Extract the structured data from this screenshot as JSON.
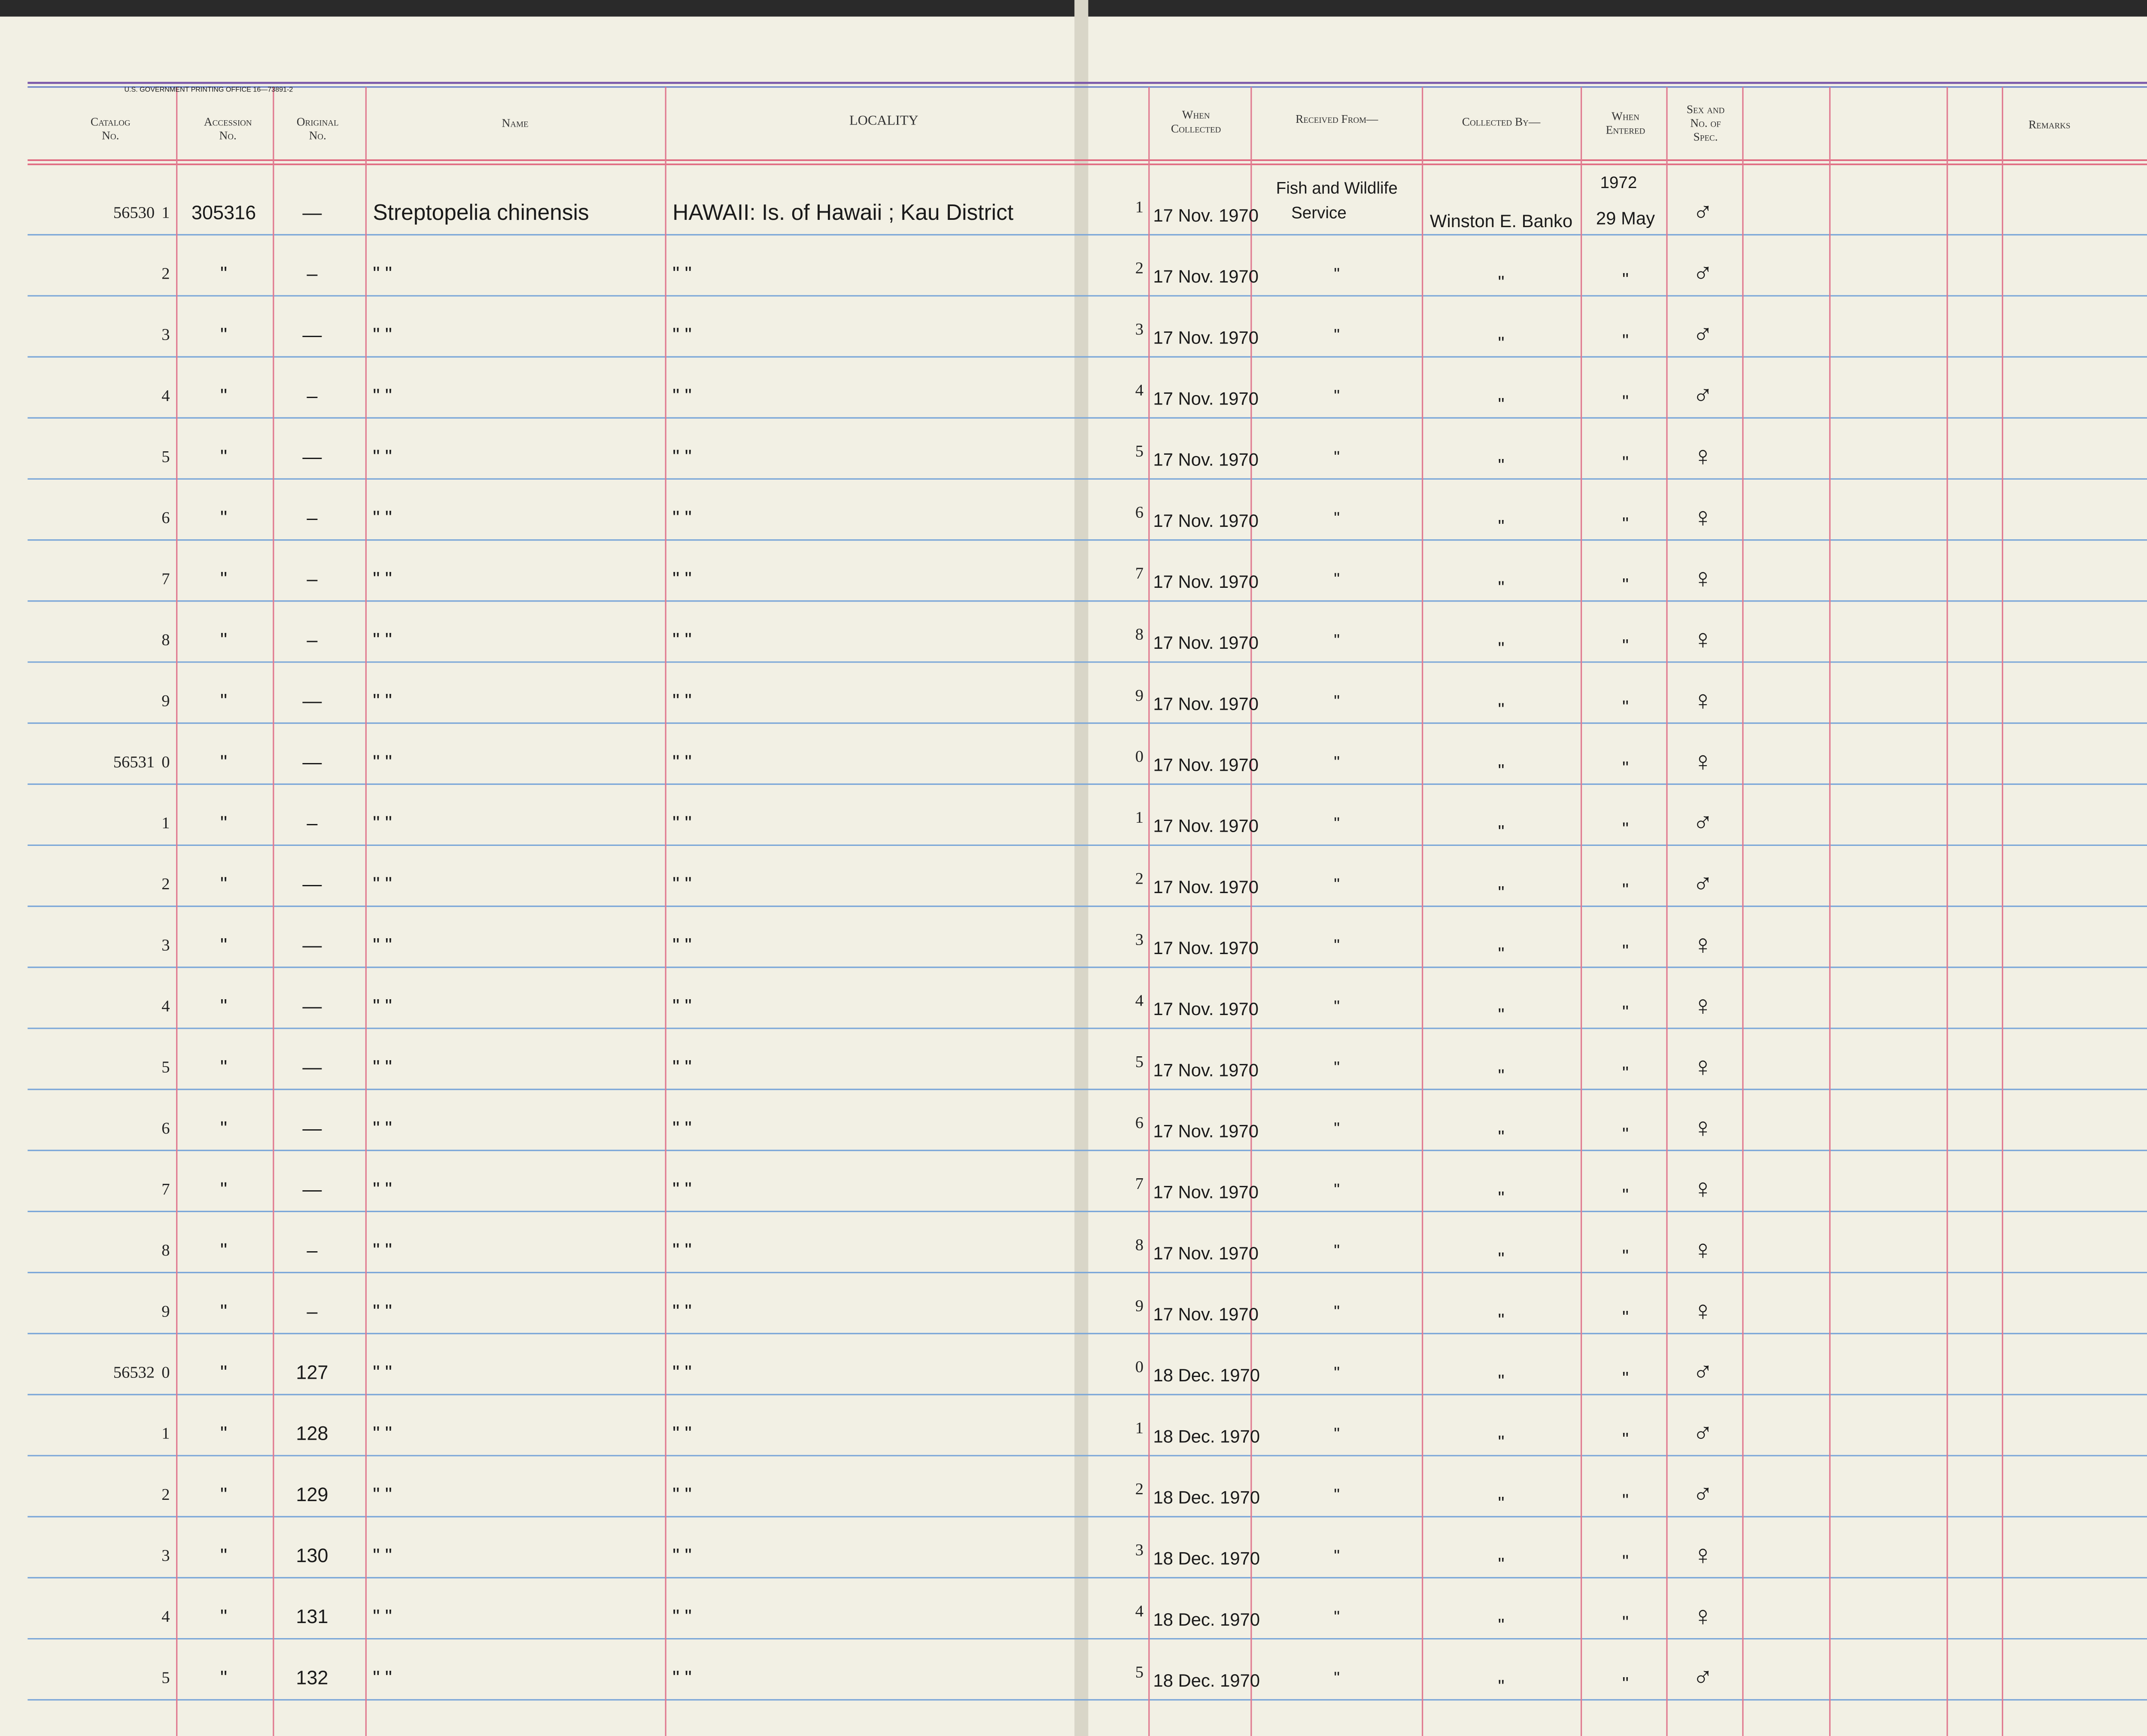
{
  "imprint": "U.S. GOVERNMENT PRINTING OFFICE    16—73891-2",
  "headers": {
    "catalog": "Catalog No.",
    "accession": "Accession No.",
    "original": "Original No.",
    "name": "Name",
    "locality": "LOCALITY",
    "when_collected": "When Collected",
    "received_from": "Received From—",
    "collected_by": "Collected By—",
    "when_entered": "When Entered",
    "sex": "Sex and No. of Spec.",
    "remarks": "Remarks"
  },
  "rows": [
    {
      "catalog": "56530",
      "n": "1",
      "accession": "305316",
      "original": "—",
      "name": "Streptopelia chinensis",
      "locality": "HAWAII: Is. of Hawaii ; Kau District",
      "d": "1",
      "date": "17 Nov. 1970",
      "received": "Fish and Wildlife",
      "received2": "Service",
      "collected": "Winston E. Banko",
      "year": "1972",
      "entered": "29 May",
      "sex": "♂"
    },
    {
      "n": "2",
      "accession": "\"",
      "original": "–",
      "name": "\"          \"",
      "locality": "\"          \"",
      "d": "2",
      "date": "17 Nov. 1970",
      "received": "\"",
      "collected": "\"",
      "entered": "\"",
      "sex": "♂"
    },
    {
      "n": "3",
      "accession": "\"",
      "original": "—",
      "name": "\"          \"",
      "locality": "\"          \"",
      "d": "3",
      "date": "17 Nov. 1970",
      "received": "\"",
      "collected": "\"",
      "entered": "\"",
      "sex": "♂"
    },
    {
      "n": "4",
      "accession": "\"",
      "original": "–",
      "name": "\"          \"",
      "locality": "\"          \"",
      "d": "4",
      "date": "17 Nov. 1970",
      "received": "\"",
      "collected": "\"",
      "entered": "\"",
      "sex": "♂"
    },
    {
      "n": "5",
      "accession": "\"",
      "original": "—",
      "name": "\"          \"",
      "locality": "\"          \"",
      "d": "5",
      "date": "17 Nov. 1970",
      "received": "\"",
      "collected": "\"",
      "entered": "\"",
      "sex": "♀"
    },
    {
      "n": "6",
      "accession": "\"",
      "original": "–",
      "name": "\"          \"",
      "locality": "\"          \"",
      "d": "6",
      "date": "17 Nov. 1970",
      "received": "\"",
      "collected": "\"",
      "entered": "\"",
      "sex": "♀"
    },
    {
      "n": "7",
      "accession": "\"",
      "original": "–",
      "name": "\"          \"",
      "locality": "\"          \"",
      "d": "7",
      "date": "17 Nov. 1970",
      "received": "\"",
      "collected": "\"",
      "entered": "\"",
      "sex": "♀"
    },
    {
      "n": "8",
      "accession": "\"",
      "original": "–",
      "name": "\"          \"",
      "locality": "\"          \"",
      "d": "8",
      "date": "17 Nov. 1970",
      "received": "\"",
      "collected": "\"",
      "entered": "\"",
      "sex": "♀"
    },
    {
      "n": "9",
      "accession": "\"",
      "original": "—",
      "name": "\"          \"",
      "locality": "\"          \"",
      "d": "9",
      "date": "17 Nov. 1970",
      "received": "\"",
      "collected": "\"",
      "entered": "\"",
      "sex": "♀"
    },
    {
      "catalog": "56531",
      "n": "0",
      "accession": "\"",
      "original": "—",
      "name": "\"          \"",
      "locality": "\"          \"",
      "d": "0",
      "date": "17 Nov. 1970",
      "received": "\"",
      "collected": "\"",
      "entered": "\"",
      "sex": "♀"
    },
    {
      "n": "1",
      "accession": "\"",
      "original": "–",
      "name": "\"          \"",
      "locality": "\"          \"",
      "d": "1",
      "date": "17 Nov. 1970",
      "received": "\"",
      "collected": "\"",
      "entered": "\"",
      "sex": "♂"
    },
    {
      "n": "2",
      "accession": "\"",
      "original": "—",
      "name": "\"          \"",
      "locality": "\"          \"",
      "d": "2",
      "date": "17 Nov. 1970",
      "received": "\"",
      "collected": "\"",
      "entered": "\"",
      "sex": "♂"
    },
    {
      "n": "3",
      "accession": "\"",
      "original": "—",
      "name": "\"          \"",
      "locality": "\"          \"",
      "d": "3",
      "date": "17 Nov. 1970",
      "received": "\"",
      "collected": "\"",
      "entered": "\"",
      "sex": "♀"
    },
    {
      "n": "4",
      "accession": "\"",
      "original": "—",
      "name": "\"          \"",
      "locality": "\"          \"",
      "d": "4",
      "date": "17 Nov. 1970",
      "received": "\"",
      "collected": "\"",
      "entered": "\"",
      "sex": "♀"
    },
    {
      "n": "5",
      "accession": "\"",
      "original": "—",
      "name": "\"          \"",
      "locality": "\"          \"",
      "d": "5",
      "date": "17 Nov. 1970",
      "received": "\"",
      "collected": "\"",
      "entered": "\"",
      "sex": "♀"
    },
    {
      "n": "6",
      "accession": "\"",
      "original": "—",
      "name": "\"          \"",
      "locality": "\"          \"",
      "d": "6",
      "date": "17 Nov. 1970",
      "received": "\"",
      "collected": "\"",
      "entered": "\"",
      "sex": "♀"
    },
    {
      "n": "7",
      "accession": "\"",
      "original": "—",
      "name": "\"          \"",
      "locality": "\"          \"",
      "d": "7",
      "date": "17 Nov. 1970",
      "received": "\"",
      "collected": "\"",
      "entered": "\"",
      "sex": "♀"
    },
    {
      "n": "8",
      "accession": "\"",
      "original": "–",
      "name": "\"          \"",
      "locality": "\"          \"",
      "d": "8",
      "date": "17 Nov. 1970",
      "received": "\"",
      "collected": "\"",
      "entered": "\"",
      "sex": "♀"
    },
    {
      "n": "9",
      "accession": "\"",
      "original": "–",
      "name": "\"          \"",
      "locality": "\"          \"",
      "d": "9",
      "date": "17 Nov. 1970",
      "received": "\"",
      "collected": "\"",
      "entered": "\"",
      "sex": "♀"
    },
    {
      "catalog": "56532",
      "n": "0",
      "accession": "\"",
      "original": "127",
      "name": "\"          \"",
      "locality": "\"          \"",
      "d": "0",
      "date": "18 Dec. 1970",
      "received": "\"",
      "collected": "\"",
      "entered": "\"",
      "sex": "♂"
    },
    {
      "n": "1",
      "accession": "\"",
      "original": "128",
      "name": "\"          \"",
      "locality": "\"          \"",
      "d": "1",
      "date": "18 Dec. 1970",
      "received": "\"",
      "collected": "\"",
      "entered": "\"",
      "sex": "♂"
    },
    {
      "n": "2",
      "accession": "\"",
      "original": "129",
      "name": "\"          \"",
      "locality": "\"          \"",
      "d": "2",
      "date": "18 Dec. 1970",
      "received": "\"",
      "collected": "\"",
      "entered": "\"",
      "sex": "♂"
    },
    {
      "n": "3",
      "accession": "\"",
      "original": "130",
      "name": "\"          \"",
      "locality": "\"          \"",
      "d": "3",
      "date": "18 Dec. 1970",
      "received": "\"",
      "collected": "\"",
      "entered": "\"",
      "sex": "♀"
    },
    {
      "n": "4",
      "accession": "\"",
      "original": "131",
      "name": "\"          \"",
      "locality": "\"          \"",
      "d": "4",
      "date": "18 Dec. 1970",
      "received": "\"",
      "collected": "\"",
      "entered": "\"",
      "sex": "♀"
    },
    {
      "n": "5",
      "accession": "\"",
      "original": "132",
      "name": "\"          \"",
      "locality": "\"          \"",
      "d": "5",
      "date": "18 Dec. 1970",
      "received": "\"",
      "collected": "\"",
      "entered": "\"",
      "sex": "♂"
    }
  ]
}
